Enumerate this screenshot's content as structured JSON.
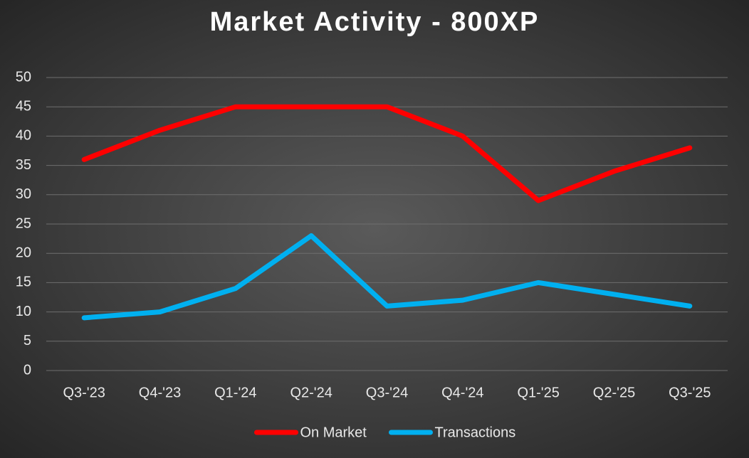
{
  "chart_data": {
    "type": "line",
    "title": "Market Activity - 800XP",
    "categories": [
      "Q3-'23",
      "Q4-'23",
      "Q1-'24",
      "Q2-'24",
      "Q3-'24",
      "Q4-'24",
      "Q1-'25",
      "Q2-'25",
      "Q3-'25"
    ],
    "series": [
      {
        "name": "On Market",
        "color": "#ff0000",
        "values": [
          36,
          41,
          45,
          45,
          45,
          40,
          29,
          34,
          38
        ]
      },
      {
        "name": "Transactions",
        "color": "#00b0f0",
        "values": [
          9,
          10,
          14,
          23,
          11,
          12,
          15,
          13,
          11
        ]
      }
    ],
    "ylim": [
      0,
      50
    ],
    "yticks": [
      0,
      5,
      10,
      15,
      20,
      25,
      30,
      35,
      40,
      45,
      50
    ],
    "grid": true,
    "legend": "bottom"
  }
}
